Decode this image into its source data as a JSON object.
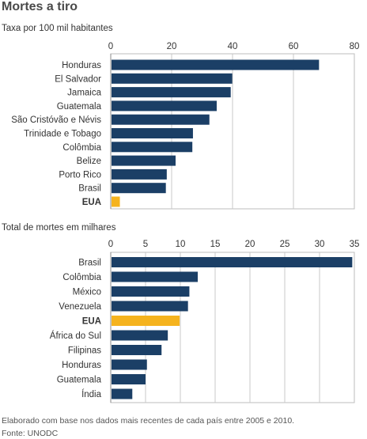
{
  "title": "Mortes a tiro",
  "colors": {
    "bar": "#1b3f66",
    "highlight": "#f5b31e",
    "grid": "#c8c8c8",
    "panel": "#ffffff",
    "border": "#bdbdbd"
  },
  "chart_data": [
    {
      "type": "bar",
      "orientation": "horizontal",
      "title": "Taxa por 100 mil habitantes",
      "xlim": [
        0,
        80
      ],
      "xticks": [
        0,
        20,
        40,
        60,
        80
      ],
      "grid": true,
      "highlight": "EUA",
      "categories": [
        "Honduras",
        "El Salvador",
        "Jamaica",
        "Guatemala",
        "São Cristóvão e Névis",
        "Trinidade e Tobago",
        "Colômbia",
        "Belize",
        "Porto Rico",
        "Brasil",
        "EUA"
      ],
      "values": [
        68.4,
        39.9,
        39.4,
        34.8,
        32.4,
        27.0,
        26.8,
        21.3,
        18.4,
        18.1,
        3.0
      ]
    },
    {
      "type": "bar",
      "orientation": "horizontal",
      "title": "Total de mortes em milhares",
      "xlim": [
        0,
        35
      ],
      "xticks": [
        0,
        5,
        10,
        15,
        20,
        25,
        30,
        35
      ],
      "grid": true,
      "highlight": "EUA",
      "categories": [
        "Brasil",
        "Colômbia",
        "México",
        "Venezuela",
        "EUA",
        "África do Sul",
        "Filipinas",
        "Honduras",
        "Guatemala",
        "Índia"
      ],
      "values": [
        34.7,
        12.5,
        11.3,
        11.1,
        9.9,
        8.2,
        7.3,
        5.2,
        5.0,
        3.1
      ]
    }
  ],
  "footnote": "Elaborado com base nos dados mais recentes de cada país entre 2005 e 2010.",
  "source": "Fonte: UNODC"
}
